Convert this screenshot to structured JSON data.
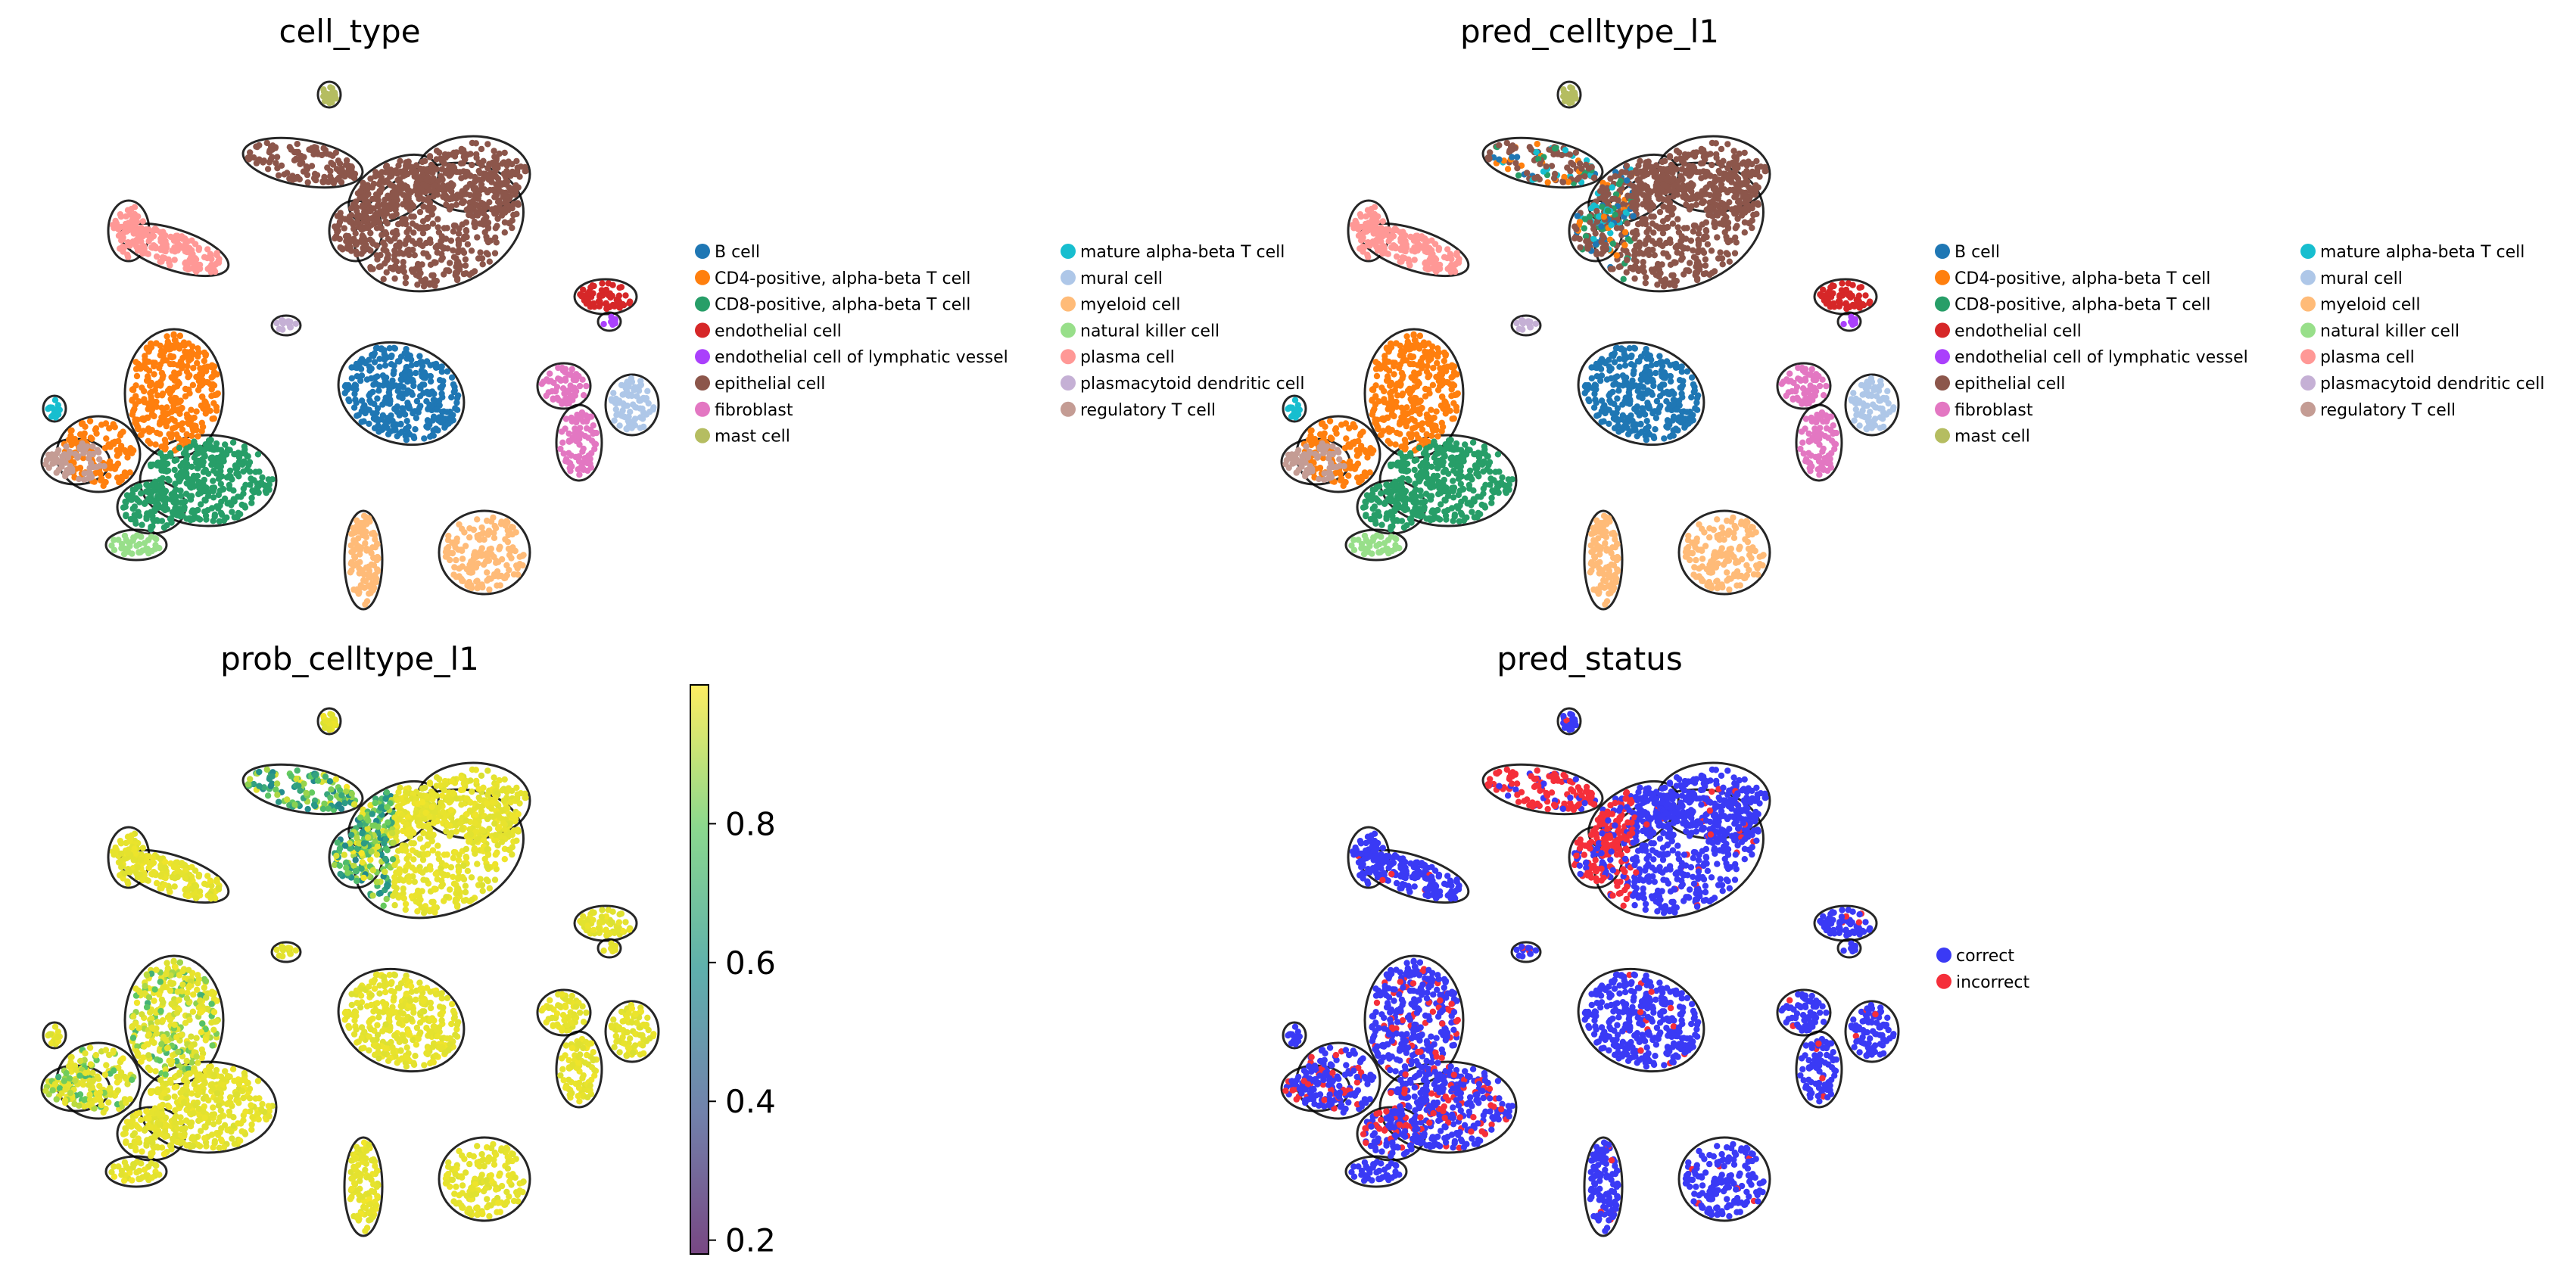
{
  "chart_data": [
    {
      "type": "scatter",
      "title": "cell_type",
      "legend_placement": "right",
      "legend": [
        {
          "label": "B cell",
          "color": "#1f77b4"
        },
        {
          "label": "CD4-positive, alpha-beta T cell",
          "color": "#ff7f0e"
        },
        {
          "label": "CD8-positive, alpha-beta T cell",
          "color": "#279e68"
        },
        {
          "label": "endothelial cell",
          "color": "#d62728"
        },
        {
          "label": "endothelial cell of lymphatic vessel",
          "color": "#aa40fc"
        },
        {
          "label": "epithelial cell",
          "color": "#8c564b"
        },
        {
          "label": "fibroblast",
          "color": "#e377c2"
        },
        {
          "label": "mast cell",
          "color": "#b5bd61"
        },
        {
          "label": "mature alpha-beta T cell",
          "color": "#17becf"
        },
        {
          "label": "mural cell",
          "color": "#aec7e8"
        },
        {
          "label": "myeloid cell",
          "color": "#ffbb78"
        },
        {
          "label": "natural killer cell",
          "color": "#98df8a"
        },
        {
          "label": "plasma cell",
          "color": "#ff9896"
        },
        {
          "label": "plasmacytoid dendritic cell",
          "color": "#c5b0d5"
        },
        {
          "label": "regulatory T cell",
          "color": "#c49c94"
        }
      ]
    },
    {
      "type": "scatter",
      "title": "pred_celltype_l1",
      "legend_placement": "right",
      "legend": [
        {
          "label": "B cell",
          "color": "#1f77b4"
        },
        {
          "label": "CD4-positive, alpha-beta T cell",
          "color": "#ff7f0e"
        },
        {
          "label": "CD8-positive, alpha-beta T cell",
          "color": "#279e68"
        },
        {
          "label": "endothelial cell",
          "color": "#d62728"
        },
        {
          "label": "endothelial cell of lymphatic vessel",
          "color": "#aa40fc"
        },
        {
          "label": "epithelial cell",
          "color": "#8c564b"
        },
        {
          "label": "fibroblast",
          "color": "#e377c2"
        },
        {
          "label": "mast cell",
          "color": "#b5bd61"
        },
        {
          "label": "mature alpha-beta T cell",
          "color": "#17becf"
        },
        {
          "label": "mural cell",
          "color": "#aec7e8"
        },
        {
          "label": "myeloid cell",
          "color": "#ffbb78"
        },
        {
          "label": "natural killer cell",
          "color": "#98df8a"
        },
        {
          "label": "plasma cell",
          "color": "#ff9896"
        },
        {
          "label": "plasmacytoid dendritic cell",
          "color": "#c5b0d5"
        },
        {
          "label": "regulatory T cell",
          "color": "#c49c94"
        }
      ]
    },
    {
      "type": "scatter",
      "title": "prob_celltype_l1",
      "colorbar": {
        "ticks": [
          0.2,
          0.4,
          0.6,
          0.8
        ],
        "range": [
          0.18,
          1.0
        ],
        "colormap": "viridis",
        "alpha": 0.7
      }
    },
    {
      "type": "scatter",
      "title": "pred_status",
      "legend_placement": "right",
      "legend": [
        {
          "label": "correct",
          "color": "#3a3af5"
        },
        {
          "label": "incorrect",
          "color": "#f52f3a"
        }
      ]
    }
  ]
}
